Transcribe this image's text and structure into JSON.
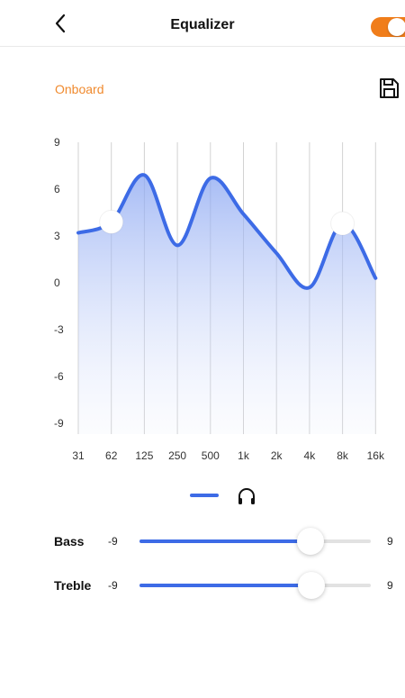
{
  "header": {
    "title": "Equalizer",
    "back_icon": "chevron-left-icon",
    "toggle_on": true,
    "accent_color": "#f07d1a"
  },
  "preset": {
    "label": "Onboard",
    "save_icon": "save-icon"
  },
  "chart_data": {
    "type": "area",
    "categories": [
      "31",
      "62",
      "125",
      "250",
      "500",
      "1k",
      "2k",
      "4k",
      "8k",
      "16k"
    ],
    "values": [
      3.2,
      3.9,
      6.9,
      2.4,
      6.7,
      4.4,
      1.9,
      -0.3,
      3.8,
      0.3
    ],
    "handles_shown": [
      "62",
      "8k"
    ],
    "y_ticks": [
      "9",
      "6",
      "3",
      "0",
      "-3",
      "-6",
      "-9"
    ],
    "ylim": [
      -9,
      9
    ],
    "grid": true,
    "line_color": "#3d6be6",
    "legend_icon": "headphones-icon"
  },
  "sliders": [
    {
      "label": "Bass",
      "min": "-9",
      "max": "9",
      "value": 4.3
    },
    {
      "label": "Treble",
      "min": "-9",
      "max": "9",
      "value": 4.4
    }
  ],
  "colors": {
    "accent": "#f07d1a",
    "preset_text": "#f08a2e",
    "slider": "#3d6be6"
  }
}
